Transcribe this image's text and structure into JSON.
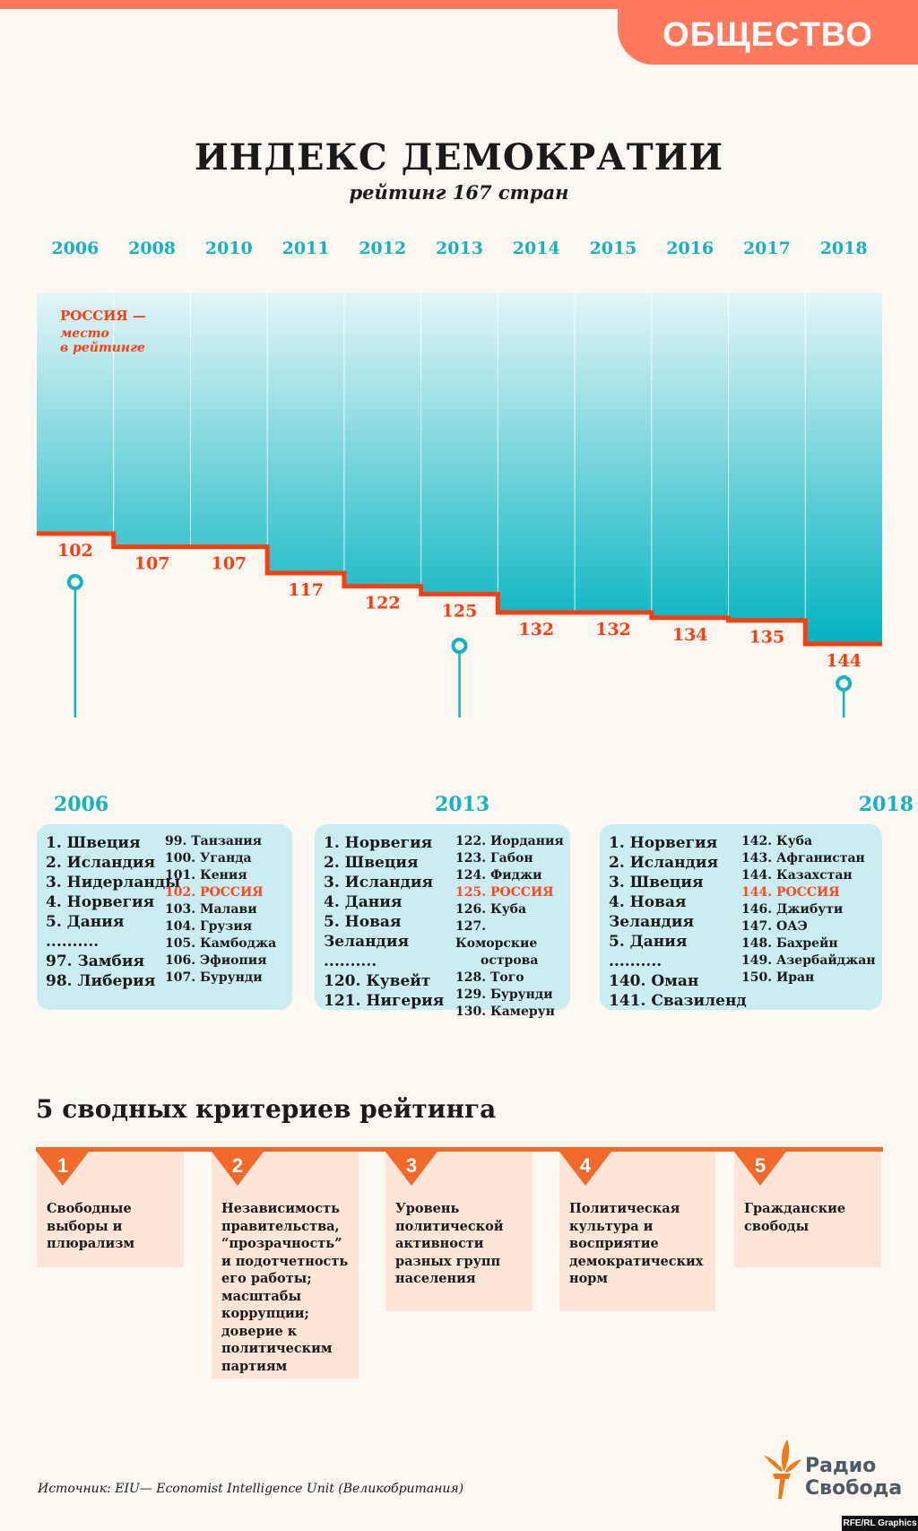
{
  "header": {
    "tag": "ОБЩЕСТВО",
    "title": "ИНДЕКС ДЕМОКРАТИИ",
    "subtitle": "рейтинг 167 стран"
  },
  "chart_data": {
    "type": "step",
    "categories": [
      "2006",
      "2008",
      "2010",
      "2011",
      "2012",
      "2013",
      "2014",
      "2015",
      "2016",
      "2017",
      "2018"
    ],
    "series": [
      {
        "name": "РОССИЯ — место в рейтинге",
        "values": [
          102,
          107,
          107,
          117,
          122,
          125,
          132,
          132,
          134,
          135,
          144
        ]
      }
    ],
    "legend_title": "РОССИЯ —",
    "legend_sub": [
      "место",
      "в рейтинге"
    ],
    "y_inverted": true,
    "colors": {
      "line": "#ff3d0f",
      "fill_top": "#e3f5f7",
      "fill_bottom": "#00b2bf",
      "year": "#13b3c2"
    },
    "markers": [
      "2006",
      "2013",
      "2018"
    ]
  },
  "lists": [
    {
      "year": "2006",
      "left": [
        "1. Швеция",
        "2. Исландия",
        "3. Нидерланды",
        "4. Норвегия",
        "5. Дания",
        "..........",
        "97. Замбия",
        "98. Либерия"
      ],
      "right": [
        "99. Танзания",
        "100. Уганда",
        "101. Кения",
        "102. РОССИЯ",
        "103. Малави",
        "104. Грузия",
        "105. Камбоджа",
        "106. Эфиопия",
        "107. Бурунди"
      ],
      "highlight": 3
    },
    {
      "year": "2013",
      "left": [
        "1. Норвегия",
        "2. Швеция",
        "3. Исландия",
        "4. Дания",
        "5. Новая",
        "Зеландия",
        "..........",
        "120. Кувейт",
        "121. Нигерия"
      ],
      "right": [
        "122. Иордания",
        "123. Габон",
        "124. Фиджи",
        "125. РОССИЯ",
        "126. Куба",
        "127. Коморские",
        "острова",
        "128. Того",
        "129. Бурунди",
        "130. Камерун"
      ],
      "highlight": 3
    },
    {
      "year": "2018",
      "left": [
        "1. Норвегия",
        "2. Исландия",
        "3. Швеция",
        "4. Новая",
        "Зеландия",
        "5. Дания",
        "..........",
        "140. Оман",
        "141. Свазиленд"
      ],
      "right": [
        "142. Куба",
        "143. Афганистан",
        "144. Казахстан",
        "144. РОССИЯ",
        "146. Джибути",
        "147. ОАЭ",
        "148. Бахрейн",
        "149. Азербайджан",
        "150. Иран"
      ],
      "highlight": 3
    }
  ],
  "criteria": {
    "title": "5 сводных критериев рейтинга",
    "items": [
      {
        "num": "1",
        "text": "Свободные выборы и плюрализм"
      },
      {
        "num": "2",
        "text": "Независимость правительства, “прозрачность” и подотчетность его работы; масштабы коррупции; доверие к политическим партиям"
      },
      {
        "num": "3",
        "text": "Уровень политической активности разных групп населения"
      },
      {
        "num": "4",
        "text": "Политическая культура и восприятие демократических норм"
      },
      {
        "num": "5",
        "text": "Гражданские свободы"
      }
    ]
  },
  "footer": {
    "source": "Источник: EIU— Economist Intelligence Unit (Великобритания)",
    "logo_line1": "Радио",
    "logo_line2": "Свобода",
    "credit": "RFE/RL Graphics"
  }
}
